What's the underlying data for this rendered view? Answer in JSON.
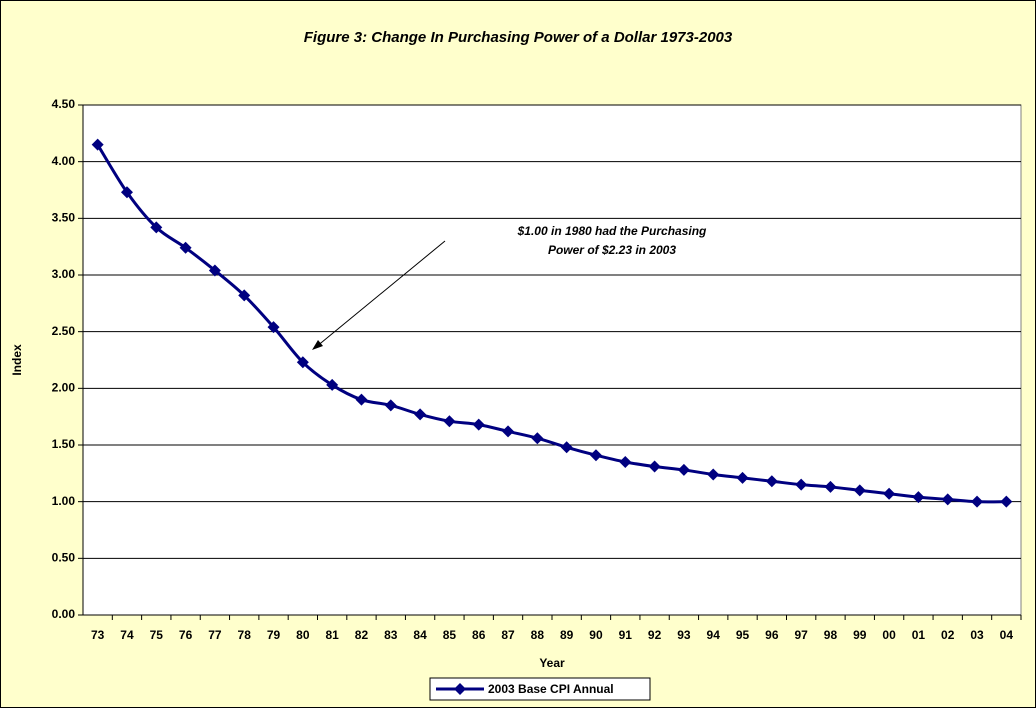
{
  "chart_data": {
    "type": "line",
    "title": "Figure 3:  Change In Purchasing Power of a Dollar 1973-2003",
    "xlabel": "Year",
    "ylabel": "Index",
    "annotation": [
      "$1.00 in 1980 had the Purchasing",
      "Power of $2.23 in 2003"
    ],
    "categories": [
      "73",
      "74",
      "75",
      "76",
      "77",
      "78",
      "79",
      "80",
      "81",
      "82",
      "83",
      "84",
      "85",
      "86",
      "87",
      "88",
      "89",
      "90",
      "91",
      "92",
      "93",
      "94",
      "95",
      "96",
      "97",
      "98",
      "99",
      "00",
      "01",
      "02",
      "03",
      "04"
    ],
    "series": [
      {
        "name": "2003 Base CPI Annual",
        "color": "#000080",
        "values": [
          4.15,
          3.73,
          3.42,
          3.24,
          3.04,
          2.82,
          2.54,
          2.23,
          2.03,
          1.9,
          1.85,
          1.77,
          1.71,
          1.68,
          1.62,
          1.56,
          1.48,
          1.41,
          1.35,
          1.31,
          1.28,
          1.24,
          1.21,
          1.18,
          1.15,
          1.13,
          1.1,
          1.07,
          1.04,
          1.02,
          1.0,
          1.0
        ]
      }
    ],
    "ylim": [
      0,
      4.5
    ],
    "yticks": [
      {
        "value": 0,
        "label": "0.00"
      },
      {
        "value": 0.5,
        "label": "0.50"
      },
      {
        "value": 1,
        "label": "1.00"
      },
      {
        "value": 1.5,
        "label": "1.50"
      },
      {
        "value": 2,
        "label": "2.00"
      },
      {
        "value": 2.5,
        "label": "2.50"
      },
      {
        "value": 3,
        "label": "3.00"
      },
      {
        "value": 3.5,
        "label": "3.50"
      },
      {
        "value": 4,
        "label": "4.00"
      },
      {
        "value": 4.5,
        "label": "4.50"
      }
    ],
    "grid": true,
    "legend": "bottom"
  }
}
